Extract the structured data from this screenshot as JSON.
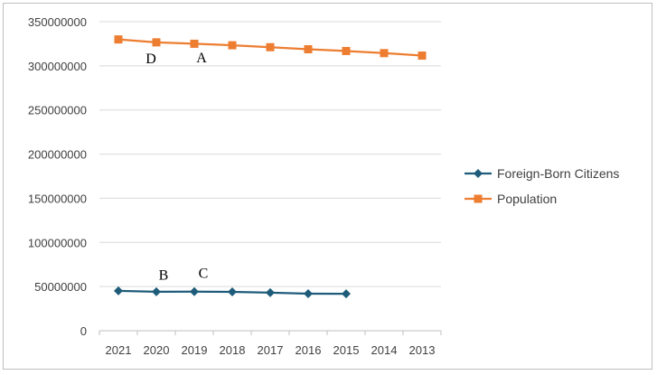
{
  "chart_data": {
    "type": "line",
    "categories": [
      "2021",
      "2020",
      "2019",
      "2018",
      "2017",
      "2016",
      "2015",
      "2014",
      "2013"
    ],
    "series": [
      {
        "name": "Foreign-Born Citizens",
        "color": "#1f5c7a",
        "marker": "diamond",
        "values": [
          45200000,
          44100000,
          44300000,
          44000000,
          43100000,
          42000000,
          41800000,
          null,
          null
        ]
      },
      {
        "name": "Population",
        "color": "#ed7d31",
        "marker": "square",
        "values": [
          329900000,
          326600000,
          325000000,
          323300000,
          321100000,
          318800000,
          316800000,
          314400000,
          311600000
        ]
      }
    ],
    "ylim": [
      0,
      350000000
    ],
    "yticks": [
      0,
      50000000,
      100000000,
      150000000,
      200000000,
      250000000,
      300000000,
      350000000
    ],
    "grid": true,
    "legend_position": "right",
    "annotations": [
      {
        "text": "D",
        "category": "2020",
        "value": 303000000
      },
      {
        "text": "A",
        "category": "2019",
        "value": 304000000
      },
      {
        "text": "B",
        "category": "2020",
        "value": 58000000
      },
      {
        "text": "C",
        "category": "2019",
        "value": 60000000
      }
    ],
    "title": "",
    "xlabel": "",
    "ylabel": ""
  }
}
